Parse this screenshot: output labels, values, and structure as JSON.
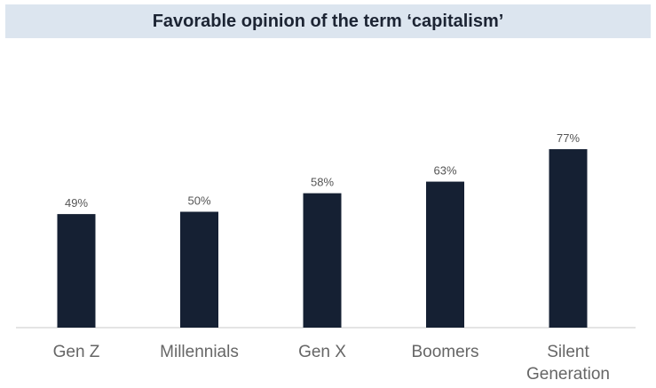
{
  "chart_data": {
    "type": "bar",
    "title": "Favorable opinion of the term ‘capitalism’",
    "categories": [
      [
        "Gen Z"
      ],
      [
        "Millennials"
      ],
      [
        "Gen X"
      ],
      [
        "Boomers"
      ],
      [
        "Silent",
        "Generation"
      ]
    ],
    "values": [
      49,
      50,
      58,
      63,
      77
    ],
    "value_labels": [
      "49%",
      "50%",
      "58%",
      "63%",
      "77%"
    ],
    "xlabel": "",
    "ylabel": "",
    "ylim": [
      0,
      100
    ],
    "grid": false,
    "bar_color": "#152033"
  }
}
